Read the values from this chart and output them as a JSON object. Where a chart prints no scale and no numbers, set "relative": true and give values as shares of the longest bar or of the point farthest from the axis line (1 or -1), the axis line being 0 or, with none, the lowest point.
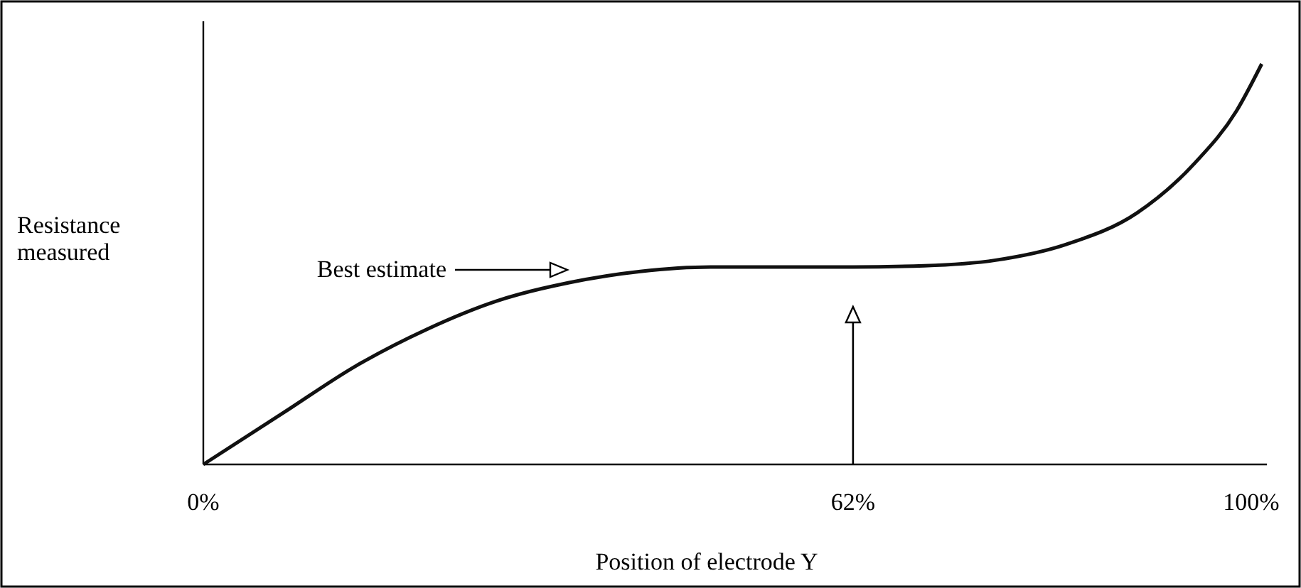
{
  "chart_data": {
    "type": "line",
    "relative": true,
    "xlabel": "Position of electrode Y",
    "ylabel": "Resistance measured",
    "x": [
      0,
      7.7,
      14.5,
      21.3,
      28,
      34.9,
      41.7,
      48.4,
      55.2,
      62,
      68.8,
      75.6,
      82.4,
      89.1,
      94.6,
      98.6,
      101
    ],
    "series": [
      {
        "color": "#111111",
        "values": [
          0,
          0.13,
          0.245,
          0.337,
          0.408,
          0.454,
          0.482,
          0.493,
          0.493,
          0.493,
          0.496,
          0.51,
          0.55,
          0.628,
          0.752,
          0.883,
          1
        ]
      }
    ],
    "xlim": [
      0,
      101.5
    ],
    "xticks": [
      {
        "value": 0,
        "label": "0%"
      },
      {
        "value": 62,
        "label": "62%"
      },
      {
        "value": 100,
        "label": "100%"
      }
    ],
    "annotations": [
      "Best estimate"
    ],
    "ref_lines": [
      {
        "axis": "x",
        "value": 62
      }
    ],
    "grid": false,
    "marker": "none",
    "line_style": "solid"
  }
}
